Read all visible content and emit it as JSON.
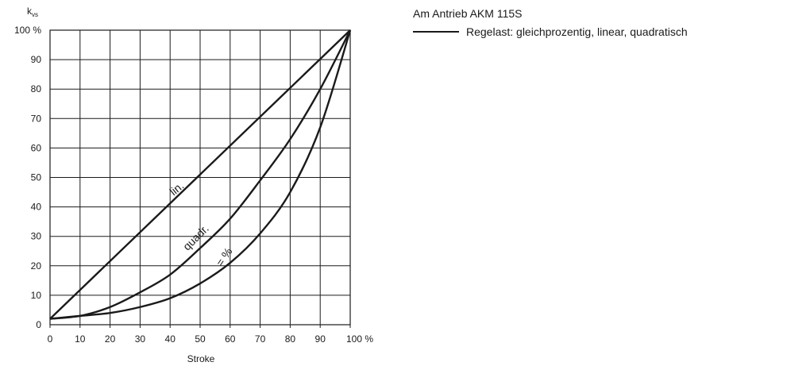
{
  "chart_data": {
    "type": "line",
    "title": "",
    "ylabel_main": "k",
    "ylabel_sub": "vs",
    "xlabel": "Stroke",
    "xlim": [
      0,
      100
    ],
    "ylim": [
      0,
      100
    ],
    "grid": true,
    "x_ticks": [
      "0",
      "10",
      "20",
      "30",
      "40",
      "50",
      "60",
      "70",
      "80",
      "90",
      "100 %"
    ],
    "y_ticks": [
      "0",
      "10",
      "20",
      "30",
      "40",
      "50",
      "60",
      "70",
      "80",
      "90",
      "100 %"
    ],
    "series": [
      {
        "name": "lin.",
        "x": [
          0,
          100
        ],
        "y": [
          2,
          100
        ]
      },
      {
        "name": "quadr.",
        "x": [
          0,
          10,
          20,
          30,
          40,
          50,
          60,
          70,
          80,
          90,
          100
        ],
        "y": [
          2,
          3,
          6,
          11,
          17,
          26,
          36,
          49,
          63,
          80,
          100
        ]
      },
      {
        "name": "= %",
        "x": [
          0,
          10,
          20,
          30,
          40,
          50,
          60,
          70,
          80,
          90,
          100
        ],
        "y": [
          2,
          3,
          4,
          6,
          9,
          14,
          21,
          31,
          45,
          67,
          100
        ]
      }
    ]
  },
  "legend": {
    "heading": "Am Antrieb AKM 115S",
    "entry": "Regelast: gleichprozentig, linear, quadratisch"
  }
}
